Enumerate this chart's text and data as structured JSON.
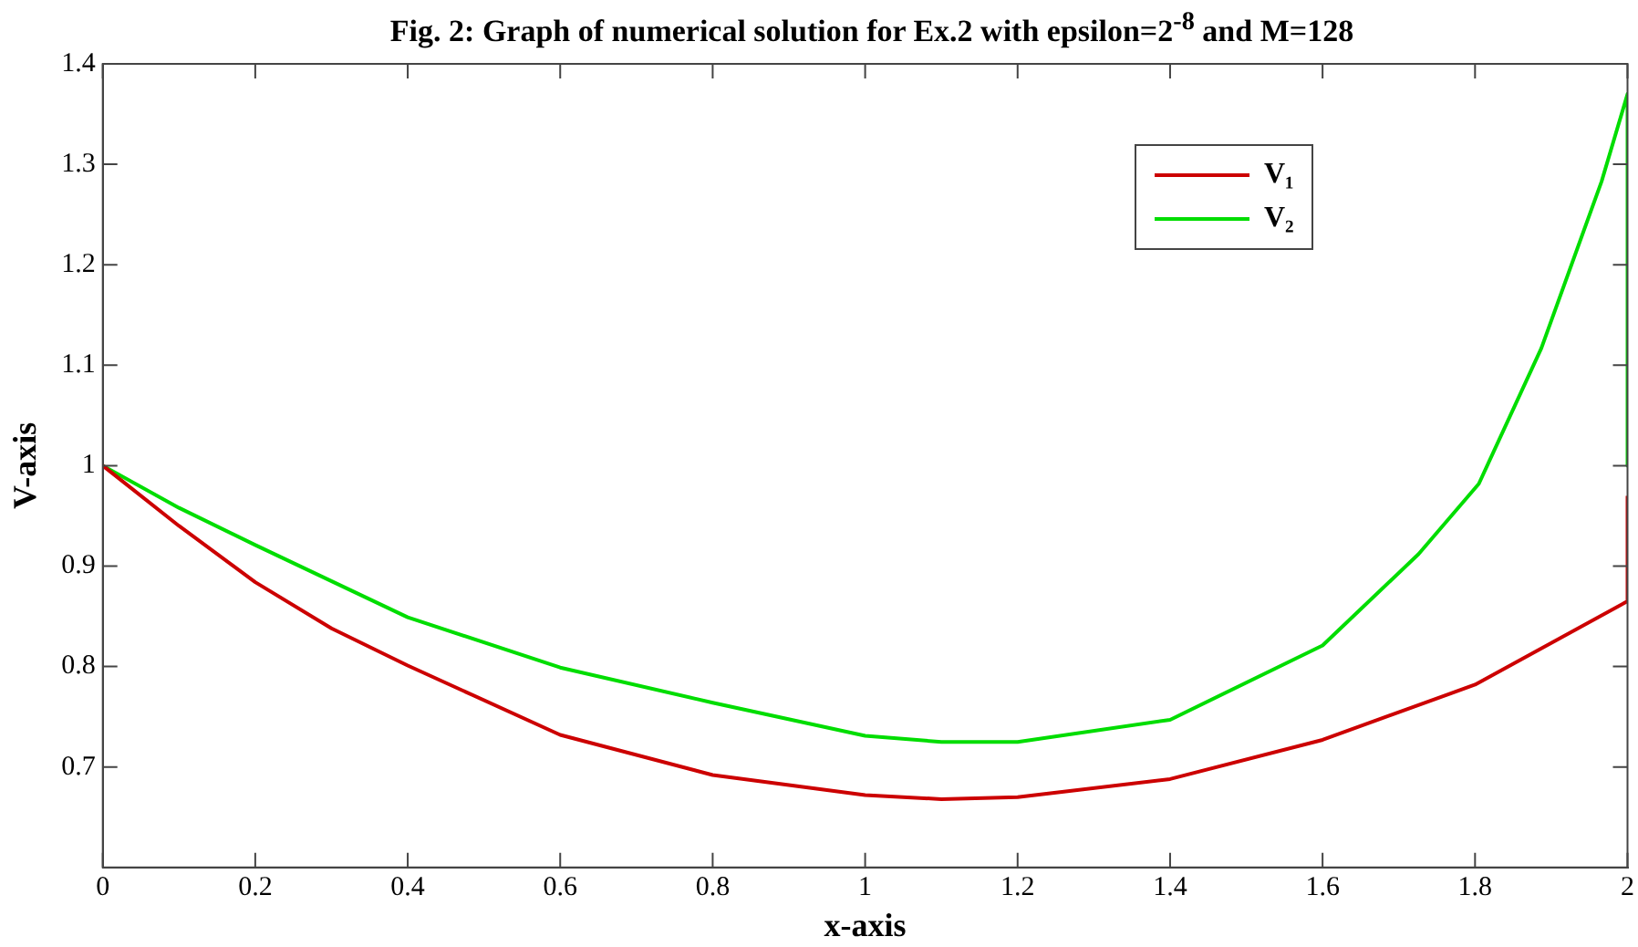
{
  "chart_data": {
    "type": "line",
    "title": "Fig. 2: Graph of numerical solution for Ex.2 with epsilon=2$^{-8}$ and M=128",
    "xlabel": "x-axis",
    "ylabel": "V-axis",
    "xlim": [
      0,
      2
    ],
    "xticks": [
      0,
      0.2,
      0.4,
      0.6,
      0.8,
      1,
      1.2,
      1.4,
      1.6,
      1.8,
      2
    ],
    "ylim": [
      0.6,
      1.4
    ],
    "yticks": [
      0.7,
      0.8,
      0.9,
      1,
      1.1,
      1.2,
      1.3,
      1.4
    ],
    "grid": false,
    "legend": "top right",
    "marker": "none",
    "line_style": "solid",
    "series": [
      {
        "name": "V₁",
        "color": "#cc0000",
        "x": [
          0,
          0.1,
          0.2,
          0.3,
          0.4,
          0.6,
          0.8,
          1.0,
          1.1,
          1.2,
          1.4,
          1.6,
          1.8,
          2,
          2
        ],
        "values": [
          1.0,
          0.94,
          0.884,
          0.838,
          0.801,
          0.732,
          0.692,
          0.672,
          0.668,
          0.67,
          0.688,
          0.727,
          0.782,
          0.865,
          0.97
        ]
      },
      {
        "name": "V₂",
        "color": "#00dd00",
        "x": [
          0,
          0.1,
          0.2,
          0.4,
          0.6,
          0.8,
          1.0,
          1.1,
          1.2,
          1.4,
          1.6,
          1.726,
          1.805,
          1.887,
          1.966,
          2,
          2
        ],
        "values": [
          1.0,
          0.958,
          0.921,
          0.849,
          0.799,
          0.764,
          0.731,
          0.725,
          0.725,
          0.747,
          0.821,
          0.912,
          0.982,
          1.117,
          1.283,
          1.37,
          1.0
        ]
      }
    ]
  }
}
